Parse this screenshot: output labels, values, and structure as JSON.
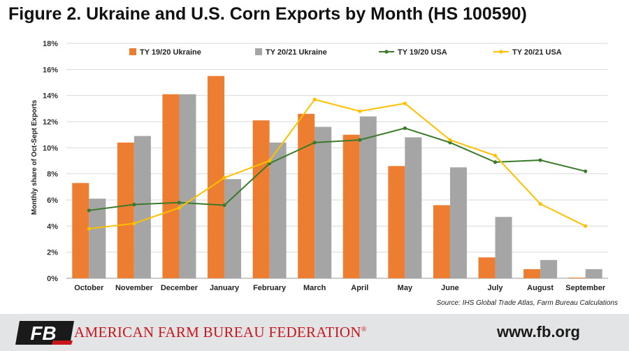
{
  "header": {
    "title": "Figure 2. Ukraine and U.S. Corn Exports by Month (HS 100590)"
  },
  "source_note": "Source: IHS Global Trade Atlas, Farm Bureau Calculations",
  "footer": {
    "org_name": "AMERICAN FARM BUREAU FEDERATION",
    "org_mark": "®",
    "logo_text": "FB",
    "website": "www.fb.org"
  },
  "colors": {
    "ukraine_1920": "#ed7d31",
    "ukraine_2021": "#a5a5a5",
    "usa_1920": "#3b7a2a",
    "usa_2021": "#ffc000",
    "brand_red": "#c8161d"
  },
  "chart_data": {
    "type": "bar",
    "title": "",
    "xlabel": "",
    "ylabel": "Monthly share of Oct-Sept Exports",
    "ylim": [
      0,
      18
    ],
    "yticks": [
      0,
      2,
      4,
      6,
      8,
      10,
      12,
      14,
      16,
      18
    ],
    "ytick_labels": [
      "0%",
      "2%",
      "4%",
      "6%",
      "8%",
      "10%",
      "12%",
      "14%",
      "16%",
      "18%"
    ],
    "grid": "horizontal",
    "legend_position": "top",
    "categories": [
      "October",
      "November",
      "December",
      "January",
      "February",
      "March",
      "April",
      "May",
      "June",
      "July",
      "August",
      "September"
    ],
    "series": [
      {
        "name": "TY 19/20 Ukraine",
        "kind": "bar",
        "color": "#ed7d31",
        "values": [
          7.3,
          10.4,
          14.1,
          15.5,
          12.1,
          12.6,
          11.0,
          8.6,
          5.6,
          1.6,
          0.7,
          0.05
        ]
      },
      {
        "name": "TY 20/21 Ukraine",
        "kind": "bar",
        "color": "#a5a5a5",
        "values": [
          6.1,
          10.9,
          14.1,
          7.6,
          10.4,
          11.6,
          12.4,
          10.8,
          8.5,
          4.7,
          1.4,
          0.7
        ]
      },
      {
        "name": "TY 19/20 USA",
        "kind": "line",
        "color": "#3b7a2a",
        "values": [
          5.2,
          5.65,
          5.8,
          5.6,
          8.8,
          10.4,
          10.6,
          11.5,
          10.4,
          8.9,
          9.05,
          8.2
        ]
      },
      {
        "name": "TY 20/21 USA",
        "kind": "line",
        "color": "#ffc000",
        "values": [
          3.8,
          4.2,
          5.4,
          7.7,
          9.0,
          13.7,
          12.8,
          13.4,
          10.6,
          9.4,
          5.7,
          4.0
        ]
      }
    ]
  }
}
